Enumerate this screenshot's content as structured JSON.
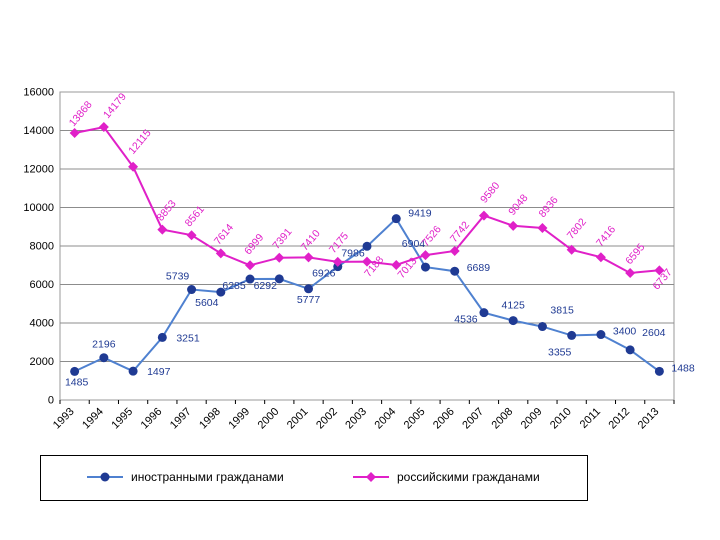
{
  "chart_data": {
    "type": "line",
    "categories": [
      "1993",
      "1994",
      "1995",
      "1996",
      "1997",
      "1998",
      "1999",
      "2000",
      "2001",
      "2002",
      "2003",
      "2004",
      "2005",
      "2006",
      "2007",
      "2008",
      "2009",
      "2010",
      "2011",
      "2012",
      "2013"
    ],
    "series": [
      {
        "name": "иностранными гражданами",
        "color": "#1f3a93",
        "line_color": "#4f81d0",
        "marker": "circle",
        "values": [
          1485,
          2196,
          1497,
          3251,
          5739,
          5604,
          6285,
          6292,
          5777,
          6926,
          7986,
          9419,
          6904,
          6689,
          4536,
          4125,
          3815,
          3355,
          3400,
          2604,
          1488
        ],
        "labels": [
          "1485",
          "2196",
          "1497",
          "3251",
          "5739",
          "5604",
          "6285",
          "6292",
          "5777",
          "6926",
          "7986",
          "9419",
          "6904",
          "6689",
          "4536",
          "4125",
          "3815",
          "3355",
          "3400",
          "2604",
          "1488"
        ]
      },
      {
        "name": "российскими гражданами",
        "color": "#e020c8",
        "line_color": "#e020c8",
        "marker": "diamond",
        "values": [
          13868,
          14179,
          12115,
          8853,
          8561,
          7614,
          6999,
          7391,
          7410,
          7175,
          7188,
          7013,
          7526,
          7742,
          9580,
          9048,
          8936,
          7802,
          7416,
          6595,
          6737
        ],
        "labels": [
          "13868",
          "14179",
          "12115",
          "8853",
          "8561",
          "7614",
          "6999",
          "7391",
          "7410",
          "7175",
          "7188",
          "7013",
          "7526",
          "7742",
          "9580",
          "9048",
          "8936",
          "7802",
          "7416",
          "6595",
          "6737"
        ]
      }
    ],
    "ylim": [
      0,
      16000
    ],
    "yticks": [
      "0",
      "2000",
      "4000",
      "6000",
      "8000",
      "10000",
      "12000",
      "14000",
      "16000"
    ],
    "grid": true,
    "legend_position": "bottom"
  }
}
